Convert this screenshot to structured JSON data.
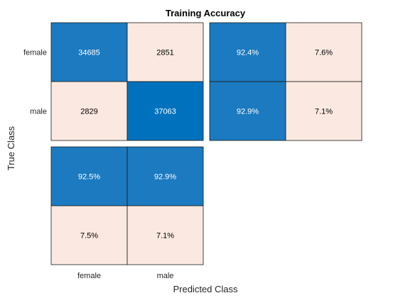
{
  "chart_data": {
    "type": "heatmap",
    "title": "Training Accuracy",
    "xlabel": "Predicted Class",
    "ylabel": "True Class",
    "classes": [
      "female",
      "male"
    ],
    "confusion_matrix": [
      [
        34685,
        2851
      ],
      [
        2829,
        37063
      ]
    ],
    "row_summary": [
      [
        "92.4%",
        "7.6%"
      ],
      [
        "92.9%",
        "7.1%"
      ]
    ],
    "column_summary": [
      [
        "92.5%",
        "92.9%"
      ],
      [
        "7.5%",
        "7.1%"
      ]
    ],
    "colors": {
      "diag_strong": "#0072bd",
      "diag": "#1c7ac0",
      "summary_high": "#1c7ac0",
      "low": "#fbe9e1",
      "border": "#1a1a1a",
      "text_on_dark": "#ffffff",
      "text_on_light": "#000000"
    }
  }
}
